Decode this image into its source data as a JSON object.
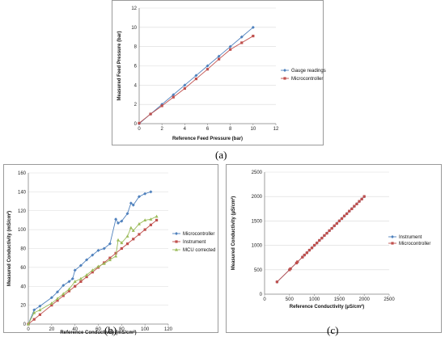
{
  "captions": {
    "a": "(a)",
    "b": "(b)",
    "c": "(c)"
  },
  "colors": {
    "blue": "#4f81bd",
    "red": "#c0504d",
    "green": "#9bbb59",
    "grid": "#d9d9d9",
    "axis": "#868686"
  },
  "chart_data": [
    {
      "id": "a",
      "type": "line",
      "title": "",
      "xlabel": "Reference Feed Pressure (bar)",
      "ylabel": "Measured Feed  Pressure (bar)",
      "xlim": [
        0,
        12
      ],
      "ylim": [
        0,
        12
      ],
      "xticks": [
        0,
        2,
        4,
        6,
        8,
        10,
        12
      ],
      "yticks": [
        0,
        2,
        4,
        6,
        8,
        10,
        12
      ],
      "xtick_labels": [
        "0",
        "2",
        "4",
        "6",
        "8",
        "10",
        "12"
      ],
      "ytick_labels": [
        "0",
        "2",
        "4",
        "6",
        "8",
        "10",
        "12"
      ],
      "grid": "horizontal",
      "legend_position": "right",
      "series": [
        {
          "name": "Gauge readings",
          "color": "#4f81bd",
          "marker": "diamond",
          "x": [
            0,
            1,
            2,
            3,
            4,
            5,
            6,
            7,
            8,
            9,
            10
          ],
          "y": [
            0,
            1,
            2,
            3,
            4,
            5,
            6,
            7,
            8,
            9,
            10
          ]
        },
        {
          "name": "Microcontroller",
          "color": "#c0504d",
          "marker": "square",
          "x": [
            0,
            1,
            2,
            3,
            4,
            5,
            6,
            7,
            8,
            9,
            10
          ],
          "y": [
            0.05,
            1.0,
            1.85,
            2.75,
            3.65,
            4.65,
            5.65,
            6.7,
            7.7,
            8.4,
            9.1
          ]
        }
      ]
    },
    {
      "id": "b",
      "type": "line",
      "title": "",
      "xlabel": "Reference Conductivity (mS/cm²)",
      "ylabel": "Measured Conductivity (mS/cm²)",
      "xlim": [
        0,
        120
      ],
      "ylim": [
        0,
        160
      ],
      "xticks": [
        0,
        20,
        40,
        60,
        80,
        100,
        120
      ],
      "yticks": [
        0,
        20,
        40,
        60,
        80,
        100,
        120,
        140,
        160
      ],
      "xtick_labels": [
        "0",
        "20",
        "40",
        "60",
        "80",
        "100",
        "120"
      ],
      "ytick_labels": [
        "0",
        "20",
        "40",
        "60",
        "80",
        "100",
        "120",
        "140",
        "160"
      ],
      "grid": "horizontal",
      "legend_position": "right",
      "series": [
        {
          "name": "Microcontroller",
          "color": "#4f81bd",
          "marker": "diamond",
          "x": [
            0,
            5,
            10,
            20,
            25,
            30,
            35,
            38,
            40,
            45,
            50,
            55,
            60,
            65,
            70,
            75,
            77,
            80,
            85,
            88,
            90,
            95,
            100,
            105
          ],
          "y": [
            0,
            15,
            19,
            28,
            34,
            41,
            45,
            48,
            57,
            62,
            68,
            73,
            78,
            80,
            85,
            111,
            107,
            109,
            117,
            128,
            126,
            135,
            138,
            140
          ]
        },
        {
          "name": "Instrument",
          "color": "#c0504d",
          "marker": "square",
          "x": [
            0,
            5,
            10,
            20,
            25,
            30,
            35,
            40,
            45,
            50,
            55,
            60,
            65,
            70,
            75,
            80,
            85,
            90,
            95,
            100,
            105,
            110
          ],
          "y": [
            0,
            5,
            10,
            20,
            25,
            30,
            35,
            40,
            45,
            50,
            55,
            60,
            65,
            70,
            75,
            80,
            85,
            90,
            95,
            100,
            105,
            110
          ]
        },
        {
          "name": "MCU corrected",
          "color": "#9bbb59",
          "marker": "triangle",
          "x": [
            0,
            5,
            10,
            20,
            25,
            30,
            35,
            40,
            45,
            50,
            55,
            60,
            65,
            70,
            75,
            77,
            80,
            85,
            88,
            90,
            95,
            100,
            105,
            110
          ],
          "y": [
            0,
            12,
            15,
            22,
            27,
            32,
            37,
            45,
            48,
            52,
            57,
            61,
            64,
            68,
            72,
            89,
            86,
            93,
            102,
            99,
            106,
            110,
            111,
            114
          ]
        }
      ]
    },
    {
      "id": "c",
      "type": "line",
      "title": "",
      "xlabel": "Reference Conductivity (µS/cm²)",
      "ylabel": "Measured Conductivity (µS/cm²)",
      "xlim": [
        0,
        2500
      ],
      "ylim": [
        0,
        2500
      ],
      "xticks": [
        0,
        500,
        1000,
        1500,
        2000,
        2500
      ],
      "yticks": [
        0,
        500,
        1000,
        1500,
        2000,
        2500
      ],
      "xtick_labels": [
        "0",
        "500",
        "1000",
        "1500",
        "2000",
        "2500"
      ],
      "ytick_labels": [
        "0",
        "500",
        "1000",
        "1500",
        "2000",
        "2500"
      ],
      "grid": "horizontal",
      "legend_position": "right",
      "series": [
        {
          "name": "Instrument",
          "color": "#4f81bd",
          "marker": "diamond",
          "x": [
            250,
            500,
            520,
            640,
            660,
            760,
            800,
            850,
            900,
            950,
            1000,
            1050,
            1100,
            1150,
            1200,
            1250,
            1300,
            1350,
            1400,
            1450,
            1500,
            1550,
            1600,
            1650,
            1700,
            1750,
            1800,
            1850,
            1900,
            1950,
            2000
          ],
          "y": [
            250,
            500,
            520,
            640,
            660,
            760,
            800,
            850,
            900,
            950,
            1000,
            1050,
            1100,
            1150,
            1200,
            1250,
            1300,
            1350,
            1400,
            1450,
            1500,
            1550,
            1600,
            1650,
            1700,
            1750,
            1800,
            1850,
            1900,
            1950,
            2000
          ]
        },
        {
          "name": "Microcontroller",
          "color": "#c0504d",
          "marker": "square",
          "x": [
            250,
            500,
            520,
            640,
            660,
            760,
            800,
            850,
            900,
            950,
            1000,
            1050,
            1100,
            1150,
            1200,
            1250,
            1300,
            1350,
            1400,
            1450,
            1500,
            1550,
            1600,
            1650,
            1700,
            1750,
            1800,
            1850,
            1900,
            1950,
            2000
          ],
          "y": [
            252,
            498,
            522,
            638,
            662,
            758,
            802,
            848,
            902,
            948,
            1002,
            1048,
            1102,
            1148,
            1202,
            1248,
            1302,
            1348,
            1402,
            1448,
            1502,
            1548,
            1602,
            1648,
            1702,
            1748,
            1802,
            1848,
            1902,
            1948,
            2002
          ]
        }
      ]
    }
  ]
}
